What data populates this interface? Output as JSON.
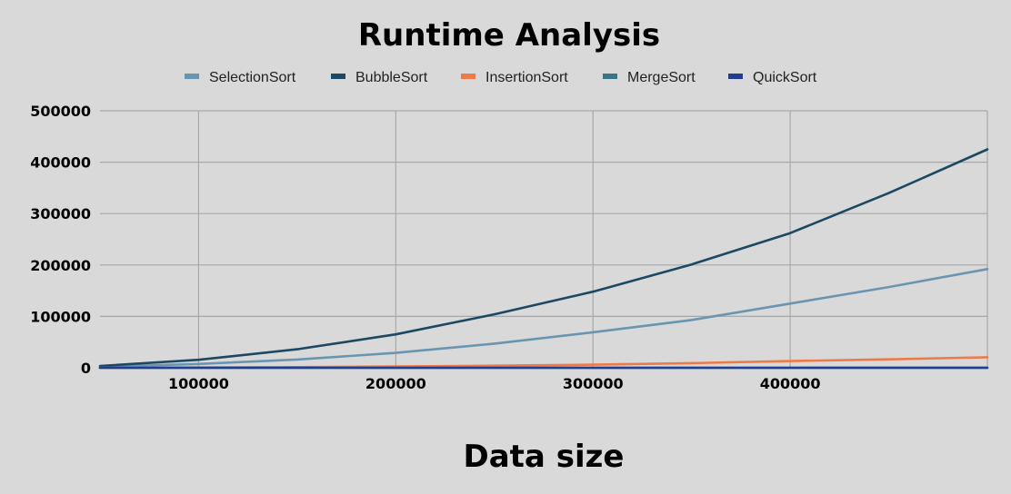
{
  "chart_data": {
    "type": "line",
    "title": "Runtime Analysis",
    "xlabel": "Data size",
    "ylabel": "",
    "xlim": [
      50000,
      500000
    ],
    "ylim": [
      0,
      500000
    ],
    "x_ticks": [
      100000,
      200000,
      300000,
      400000
    ],
    "y_ticks": [
      0,
      100000,
      200000,
      300000,
      400000,
      500000
    ],
    "grid": true,
    "legend_position": "top",
    "x": [
      50000,
      100000,
      150000,
      200000,
      250000,
      300000,
      350000,
      400000,
      450000,
      500000
    ],
    "series": [
      {
        "name": "SelectionSort",
        "color": "#6a95b1",
        "values": [
          2000,
          7500,
          16000,
          29000,
          47000,
          69000,
          93000,
          125000,
          157000,
          192000
        ]
      },
      {
        "name": "BubbleSort",
        "color": "#1c4863",
        "values": [
          3500,
          15500,
          36000,
          65000,
          104000,
          148000,
          201000,
          262000,
          340000,
          425000
        ]
      },
      {
        "name": "InsertionSort",
        "color": "#ee7b47",
        "values": [
          100,
          500,
          1200,
          2500,
          4000,
          6000,
          9000,
          13000,
          16500,
          20500
        ]
      },
      {
        "name": "MergeSort",
        "color": "#3b7485",
        "values": [
          10,
          20,
          30,
          40,
          50,
          60,
          70,
          80,
          90,
          100
        ]
      },
      {
        "name": "QuickSort",
        "color": "#1f3e94",
        "values": [
          5,
          10,
          15,
          20,
          25,
          30,
          35,
          40,
          45,
          50
        ]
      }
    ]
  }
}
